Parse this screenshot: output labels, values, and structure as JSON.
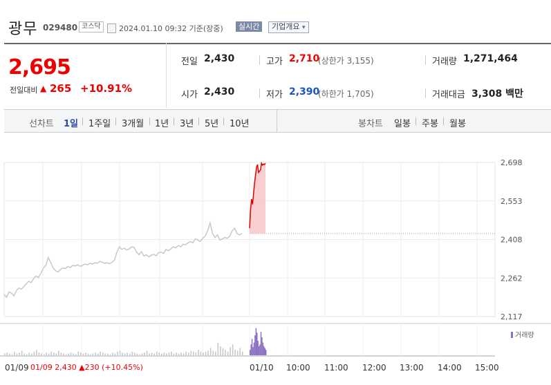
{
  "header": {
    "name": "광무",
    "code": "029480",
    "market": "코스닥",
    "asof": "2024.01.10 09:32 기준(장중)",
    "realtime_label": "실시간",
    "company_label": "기업개요",
    "company_caret": "▾"
  },
  "quote": {
    "price": "2,695",
    "change_label": "전일대비",
    "change_arrow": "▲",
    "change_value": "265",
    "change_rate": "+10.91%",
    "prev_close_label": "전일",
    "prev_close": "2,430",
    "open_label": "시가",
    "open": "2,430",
    "high_label": "고가",
    "high": "2,710",
    "upper_limit_text": "(상한가 3,155)",
    "low_label": "저가",
    "low": "2,390",
    "lower_limit_text": "(하한가 1,705)",
    "volume_label": "거래량",
    "volume": "1,271,464",
    "amount_label": "거래대금",
    "amount": "3,308 백만",
    "colors": {
      "up": "#e00000",
      "down": "#1a52c7"
    }
  },
  "tabs": {
    "line_label": "선차트",
    "line_periods": [
      "1일",
      "1주일",
      "3개월",
      "1년",
      "3년",
      "5년",
      "10년"
    ],
    "active_period": "1일",
    "candle_label": "봉차트",
    "candle_periods": [
      "일봉",
      "주봉",
      "월봉"
    ]
  },
  "chart_data": {
    "type": "line",
    "y_ticks": [
      "2,698",
      "2,553",
      "2,408",
      "2,262",
      "2,117"
    ],
    "ylim": [
      2117,
      2698
    ],
    "grid": true,
    "prev_close": 2430,
    "x_ticks": [
      "01/09",
      "01/10",
      "10:00",
      "11:00",
      "12:00",
      "13:00",
      "14:00",
      "15:00"
    ],
    "volume_label": "거래량",
    "prev_day_info": "01/09 2,430 ▲230 (+10.45%)",
    "series": [
      {
        "session": "01/09",
        "color": "#c8c8c8",
        "values": [
          2200,
          2190,
          2210,
          2205,
          2195,
          2215,
          2225,
          2220,
          2230,
          2240,
          2250,
          2245,
          2260,
          2270,
          2265,
          2280,
          2300,
          2310,
          2340,
          2320,
          2300,
          2290,
          2285,
          2295,
          2300,
          2298,
          2305,
          2302,
          2310,
          2308,
          2312,
          2306,
          2310,
          2315,
          2312,
          2318,
          2315,
          2320,
          2318,
          2325,
          2322,
          2318,
          2320,
          2316,
          2322,
          2330,
          2360,
          2380,
          2370,
          2375,
          2368,
          2372,
          2380,
          2378,
          2360,
          2350,
          2362,
          2345,
          2350,
          2342,
          2348,
          2352,
          2346,
          2358,
          2360,
          2355,
          2370,
          2365,
          2372,
          2380,
          2376,
          2385,
          2380,
          2390,
          2388,
          2395,
          2400,
          2395,
          2410,
          2405,
          2400,
          2412,
          2420,
          2440,
          2470,
          2430,
          2415,
          2425,
          2405,
          2410,
          2415,
          2412,
          2420,
          2440,
          2450,
          2430,
          2425,
          2430
        ]
      },
      {
        "session": "01/10",
        "color": "#e00000",
        "values": [
          2450,
          2520,
          2560,
          2540,
          2580,
          2620,
          2650,
          2680,
          2690,
          2660,
          2665,
          2670,
          2695,
          2688,
          2692,
          2690,
          2695
        ]
      }
    ],
    "volume": {
      "prev_day_color": "#c8c8c8",
      "today_color": "#8a6cc0",
      "prev_day": [
        2,
        3,
        2,
        1,
        4,
        2,
        3,
        5,
        2,
        1,
        3,
        2,
        4,
        6,
        3,
        2,
        1,
        3,
        2,
        4,
        3,
        2,
        5,
        3,
        2,
        1,
        2,
        3,
        2,
        1,
        4,
        3,
        2,
        3,
        2,
        1,
        2,
        3,
        2,
        4,
        3,
        2,
        2,
        1,
        3,
        2,
        4,
        5,
        3,
        2,
        3,
        2,
        4,
        3,
        2,
        1,
        2,
        3,
        5,
        2,
        3,
        2,
        4,
        3,
        2,
        3,
        2,
        3,
        4,
        2,
        3,
        2,
        3,
        2,
        4,
        3,
        5,
        4,
        3,
        6,
        4,
        3,
        4,
        5,
        8,
        5,
        4,
        14,
        10,
        8,
        6,
        4,
        9,
        12,
        6,
        5,
        8,
        4
      ],
      "today": [
        6,
        12,
        18,
        9,
        14,
        22,
        30,
        25,
        16,
        10,
        12,
        26,
        20,
        14,
        10,
        8,
        6
      ]
    }
  }
}
